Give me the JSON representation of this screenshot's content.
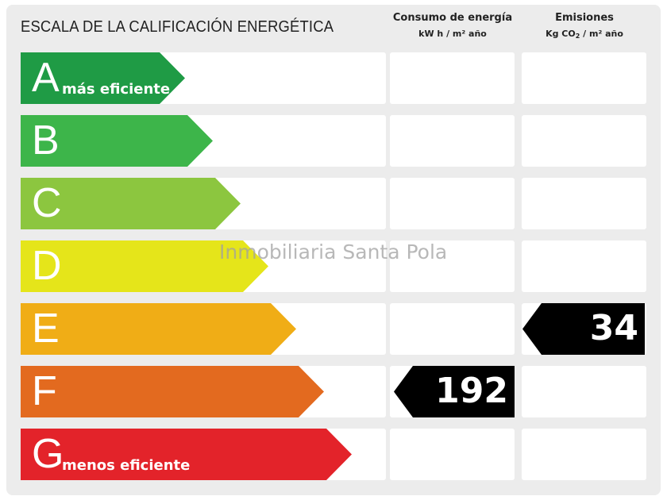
{
  "title": "ESCALA DE LA CALIFICACIÓN ENERGÉTICA",
  "columns": {
    "consumption": {
      "title": "Consumo de energía",
      "unit": "kW h / m² año"
    },
    "emissions": {
      "title": "Emisiones",
      "unit_prefix": "Kg CO",
      "unit_sub": "2",
      "unit_suffix": " / m² año"
    }
  },
  "ratings": [
    {
      "letter": "A",
      "label": "más eficiente",
      "color": "#1f9b45"
    },
    {
      "letter": "B",
      "label": "",
      "color": "#3db54a"
    },
    {
      "letter": "C",
      "label": "",
      "color": "#8cc63f"
    },
    {
      "letter": "D",
      "label": "",
      "color": "#e5e51a"
    },
    {
      "letter": "E",
      "label": "",
      "color": "#f0ad16"
    },
    {
      "letter": "F",
      "label": "",
      "color": "#e36a1f"
    },
    {
      "letter": "G",
      "label": "menos eficiente",
      "color": "#e3232a"
    }
  ],
  "consumption_value": "192",
  "consumption_rating": "F",
  "emissions_value": "34",
  "emissions_rating": "E",
  "watermark": "Inmobiliaria Santa Pola"
}
